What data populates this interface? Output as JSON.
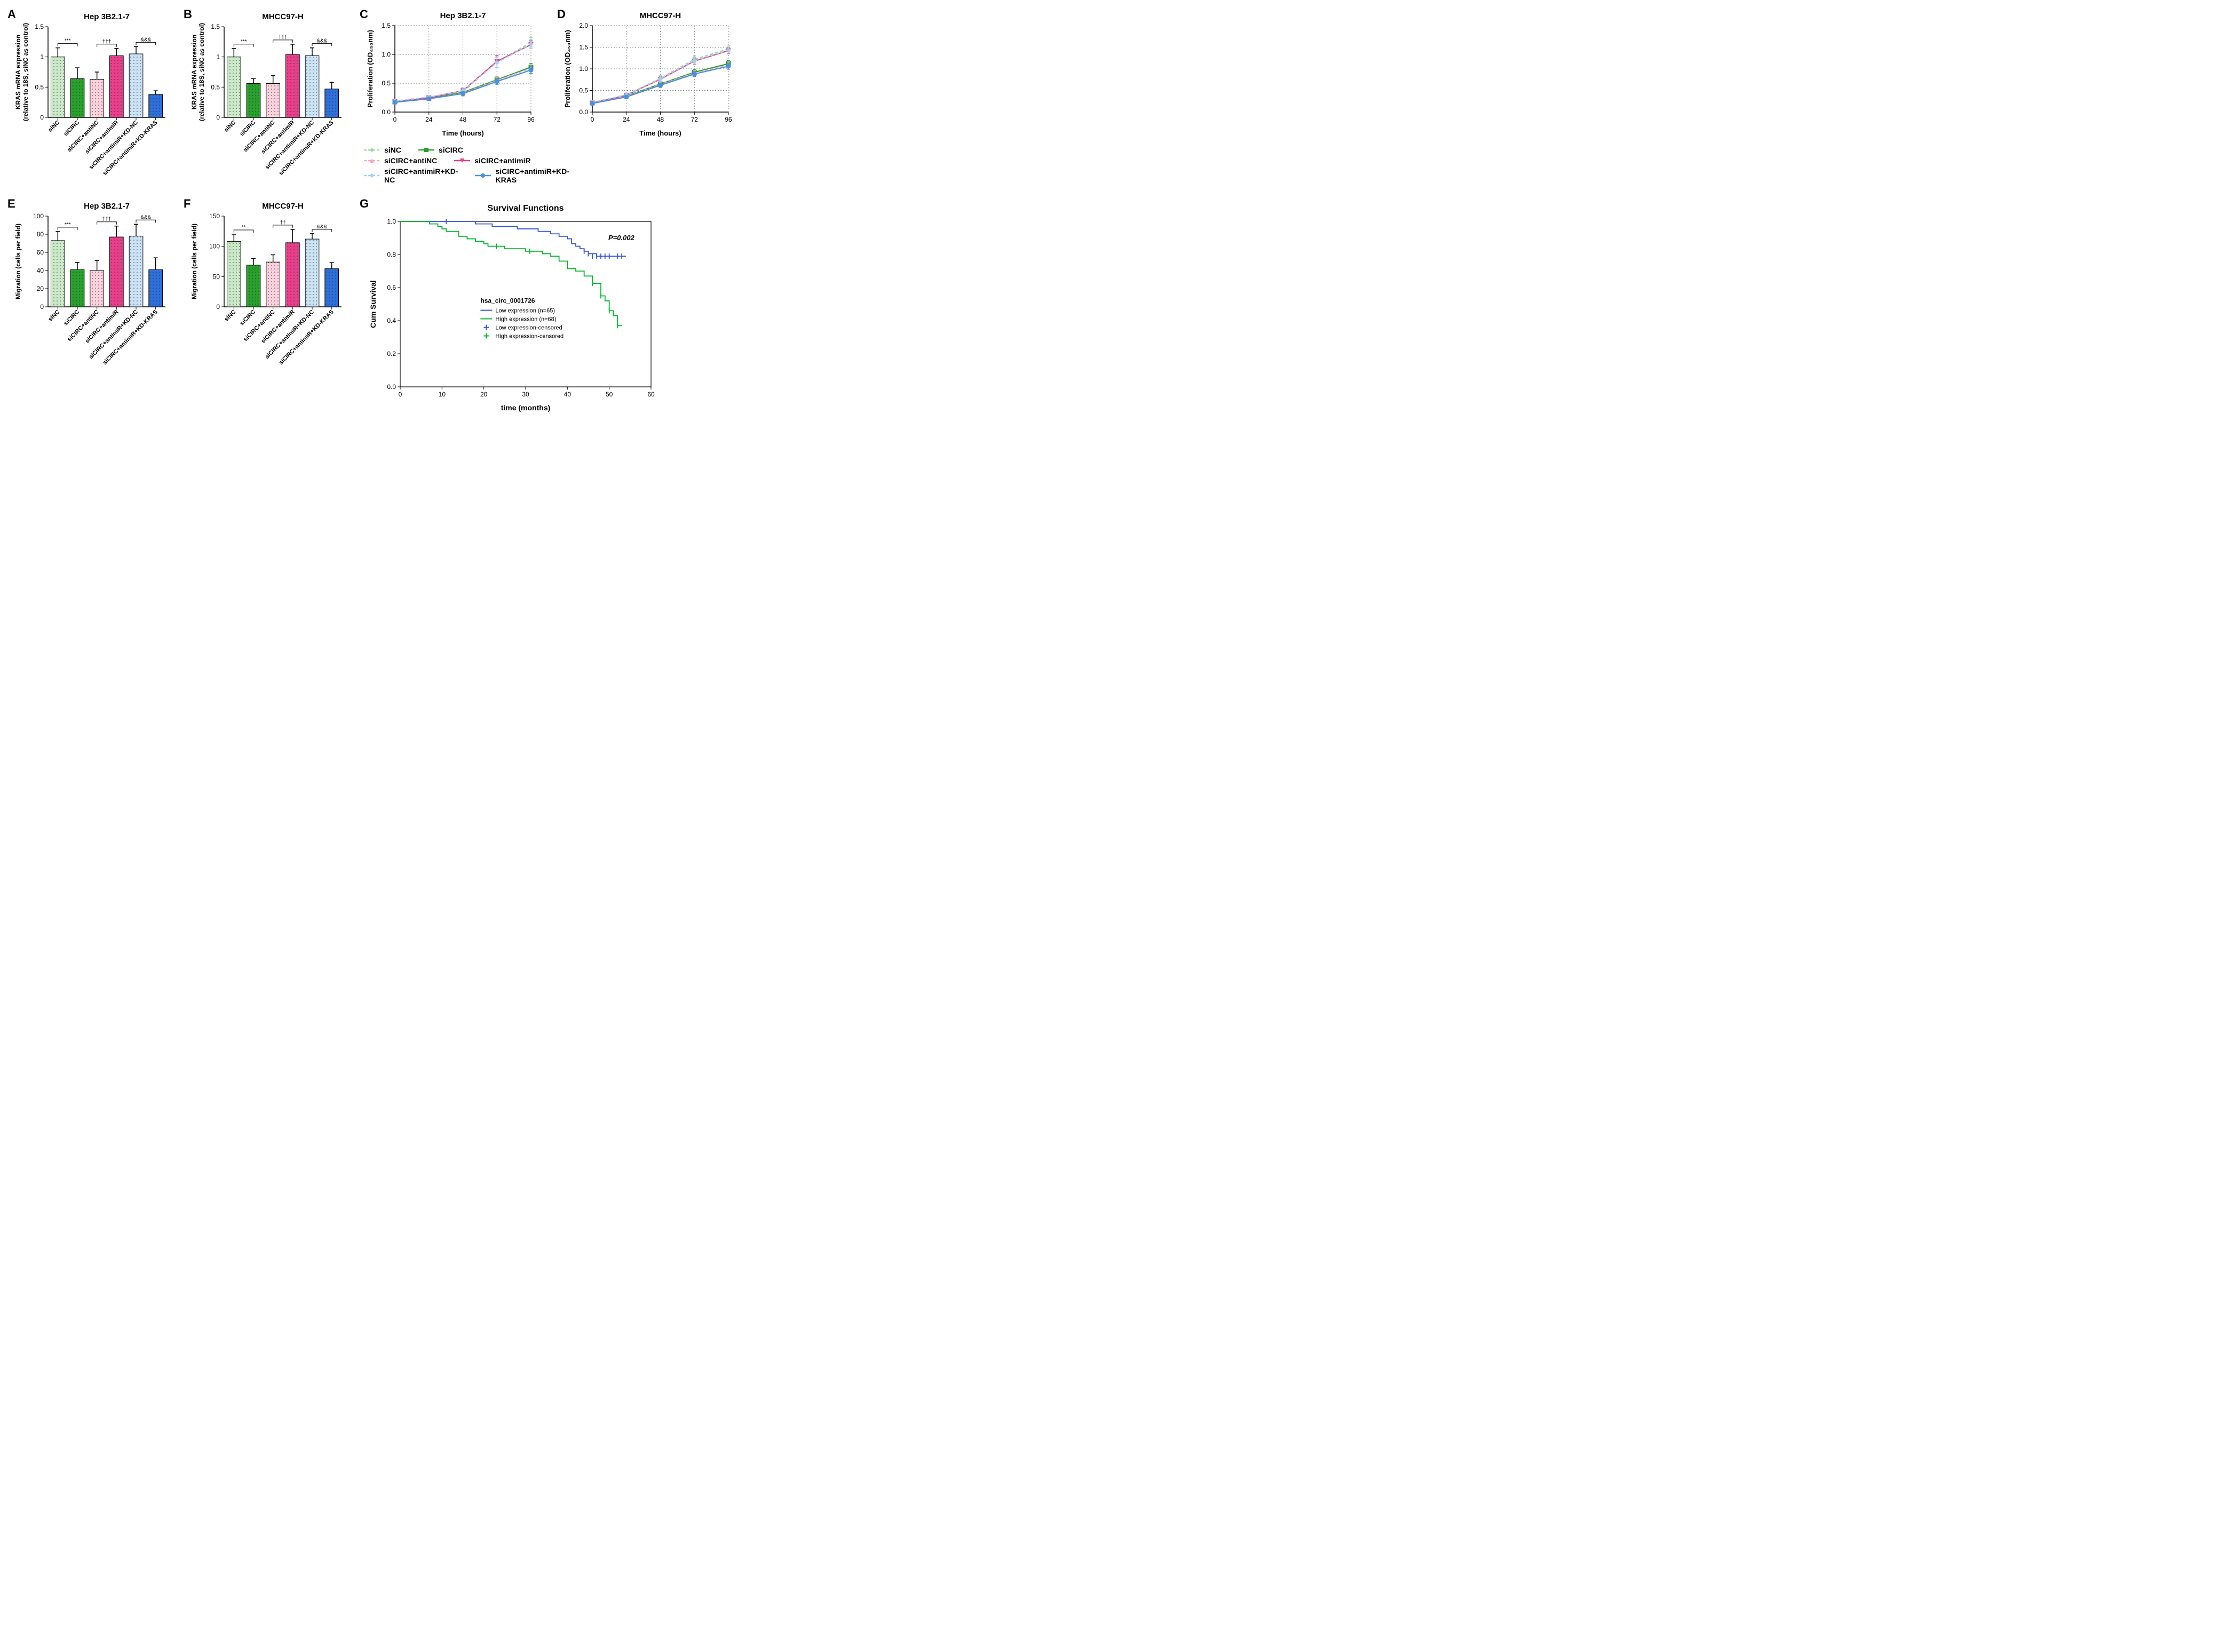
{
  "panels": {
    "A": {
      "label": "A",
      "title": "Hep 3B2.1-7",
      "ylabel": "KRAS mRNA expression\n(relative to 18S, siNC as control)",
      "ylim": [
        0,
        1.5
      ],
      "ystep": 0.5,
      "categories": [
        "siNC",
        "siCIRC",
        "siCIRC+antiNC",
        "siCIRC+antimiR",
        "siCIRC+antimiR+KD-NC",
        "siCIRC+antimiR+KD-KRAS"
      ],
      "values": [
        1.0,
        0.64,
        0.63,
        1.02,
        1.05,
        0.38
      ],
      "errors": [
        0.15,
        0.18,
        0.12,
        0.12,
        0.12,
        0.06
      ],
      "colors": [
        "#c9e9c7",
        "#28a02c",
        "#fbd1dd",
        "#e83e8c",
        "#cbe3f7",
        "#2d6fdb"
      ],
      "sig": [
        [
          "***",
          0,
          1
        ],
        [
          "†††",
          2,
          3
        ],
        [
          "&&&",
          4,
          5
        ]
      ]
    },
    "B": {
      "label": "B",
      "title": "MHCC97-H",
      "ylabel": "KRAS mRNA expression\n(relative to 18S, siNC as control)",
      "ylim": [
        0,
        1.5
      ],
      "ystep": 0.5,
      "categories": [
        "siNC",
        "siCIRC",
        "siCIRC+antiNC",
        "siCIRC+antimiR",
        "siCIRC+antimiR+KD-NC",
        "siCIRC+antimiR+KD-KRAS"
      ],
      "values": [
        1.0,
        0.56,
        0.56,
        1.04,
        1.02,
        0.47
      ],
      "errors": [
        0.14,
        0.08,
        0.13,
        0.17,
        0.13,
        0.11
      ],
      "colors": [
        "#c9e9c7",
        "#28a02c",
        "#fbd1dd",
        "#e83e8c",
        "#cbe3f7",
        "#2d6fdb"
      ],
      "sig": [
        [
          "***",
          0,
          1
        ],
        [
          "†††",
          2,
          3
        ],
        [
          "&&&",
          4,
          5
        ]
      ]
    },
    "C": {
      "label": "C",
      "title": "Hep 3B2.1-7",
      "ylabel": "Proliferation (OD₄₅₀nm)",
      "ylim": [
        0,
        1.5
      ],
      "ystep": 0.5,
      "xpoints": [
        0,
        24,
        48,
        72,
        96
      ],
      "xlabel": "Time (hours)",
      "series": [
        {
          "name": "siNC",
          "values": [
            0.19,
            0.26,
            0.35,
            0.87,
            1.21
          ],
          "err": [
            0.02,
            0.03,
            0.04,
            0.09,
            0.08
          ],
          "color": "#9ed89b",
          "dash": true,
          "marker": "diamond"
        },
        {
          "name": "siCIRC",
          "values": [
            0.18,
            0.24,
            0.34,
            0.56,
            0.78
          ],
          "err": [
            0.02,
            0.03,
            0.04,
            0.05,
            0.06
          ],
          "color": "#28a02c",
          "dash": false,
          "marker": "square"
        },
        {
          "name": "siCIRC+antiNC",
          "values": [
            0.17,
            0.23,
            0.33,
            0.55,
            0.76
          ],
          "err": [
            0.02,
            0.03,
            0.04,
            0.05,
            0.06
          ],
          "color": "#f5a7c0",
          "dash": true,
          "marker": "triangle"
        },
        {
          "name": "siCIRC+antimiR",
          "values": [
            0.18,
            0.25,
            0.37,
            0.88,
            1.17
          ],
          "err": [
            0.02,
            0.03,
            0.05,
            0.1,
            0.07
          ],
          "color": "#e83e8c",
          "dash": false,
          "marker": "invtriangle"
        },
        {
          "name": "siCIRC+antimiR+KD-NC",
          "values": [
            0.19,
            0.26,
            0.37,
            0.86,
            1.18
          ],
          "err": [
            0.02,
            0.03,
            0.05,
            0.09,
            0.08
          ],
          "color": "#a6cdf2",
          "dash": true,
          "marker": "diamond"
        },
        {
          "name": "siCIRC+antimiR+KD-KRAS",
          "values": [
            0.17,
            0.23,
            0.32,
            0.53,
            0.73
          ],
          "err": [
            0.02,
            0.03,
            0.04,
            0.05,
            0.06
          ],
          "color": "#4a90e2",
          "dash": false,
          "marker": "circle"
        }
      ]
    },
    "D": {
      "label": "D",
      "title": "MHCC97-H",
      "ylabel": "Proliferation (OD₄₅₀nm)",
      "ylim": [
        0,
        2.0
      ],
      "ystep": 0.5,
      "xpoints": [
        0,
        24,
        48,
        72,
        96
      ],
      "xlabel": "Time (hours)",
      "series": [
        {
          "name": "siNC",
          "values": [
            0.22,
            0.4,
            0.78,
            1.22,
            1.46
          ],
          "err": [
            0.02,
            0.04,
            0.06,
            0.08,
            0.07
          ],
          "color": "#9ed89b",
          "dash": true,
          "marker": "diamond"
        },
        {
          "name": "siCIRC",
          "values": [
            0.21,
            0.37,
            0.65,
            0.92,
            1.12
          ],
          "err": [
            0.02,
            0.04,
            0.05,
            0.06,
            0.07
          ],
          "color": "#28a02c",
          "dash": false,
          "marker": "square"
        },
        {
          "name": "siCIRC+antiNC",
          "values": [
            0.2,
            0.36,
            0.64,
            0.9,
            1.09
          ],
          "err": [
            0.02,
            0.04,
            0.05,
            0.06,
            0.07
          ],
          "color": "#f5a7c0",
          "dash": true,
          "marker": "triangle"
        },
        {
          "name": "siCIRC+antimiR",
          "values": [
            0.21,
            0.39,
            0.76,
            1.18,
            1.42
          ],
          "err": [
            0.02,
            0.04,
            0.06,
            0.08,
            0.07
          ],
          "color": "#e83e8c",
          "dash": false,
          "marker": "invtriangle"
        },
        {
          "name": "siCIRC+antimiR+KD-NC",
          "values": [
            0.22,
            0.39,
            0.77,
            1.19,
            1.43
          ],
          "err": [
            0.02,
            0.04,
            0.06,
            0.08,
            0.07
          ],
          "color": "#a6cdf2",
          "dash": true,
          "marker": "diamond"
        },
        {
          "name": "siCIRC+antimiR+KD-KRAS",
          "values": [
            0.2,
            0.35,
            0.62,
            0.88,
            1.06
          ],
          "err": [
            0.02,
            0.04,
            0.05,
            0.06,
            0.07
          ],
          "color": "#4a90e2",
          "dash": false,
          "marker": "circle"
        }
      ]
    },
    "E": {
      "label": "E",
      "title": "Hep 3B2.1-7",
      "ylabel": "Migration (cells per field)",
      "ylim": [
        0,
        100
      ],
      "ystep": 20,
      "categories": [
        "siNC",
        "siCIRC",
        "siCIRC+antiNC",
        "siCIRC+antimiR",
        "siCIRC+antimiR+KD-NC",
        "siCIRC+antimiR+KD-KRAS"
      ],
      "values": [
        73,
        41,
        40,
        77,
        78,
        41
      ],
      "errors": [
        10,
        8,
        11,
        12,
        13,
        13
      ],
      "colors": [
        "#c9e9c7",
        "#28a02c",
        "#fbd1dd",
        "#e83e8c",
        "#cbe3f7",
        "#2d6fdb"
      ],
      "sig": [
        [
          "***",
          0,
          1
        ],
        [
          "†††",
          2,
          3
        ],
        [
          "&&&",
          4,
          5
        ]
      ]
    },
    "F": {
      "label": "F",
      "title": "MHCC97-H",
      "ylabel": "Migration (cells per field)",
      "ylim": [
        0,
        150
      ],
      "ystep": 50,
      "categories": [
        "siNC",
        "siCIRC",
        "siCIRC+antiNC",
        "siCIRC+antimiR",
        "siCIRC+antimiR+KD-NC",
        "siCIRC+antimiR+KD-KRAS"
      ],
      "values": [
        108,
        69,
        74,
        106,
        112,
        63
      ],
      "errors": [
        12,
        11,
        12,
        22,
        9,
        10
      ],
      "colors": [
        "#c9e9c7",
        "#28a02c",
        "#fbd1dd",
        "#e83e8c",
        "#cbe3f7",
        "#2d6fdb"
      ],
      "sig": [
        [
          "**",
          0,
          1
        ],
        [
          "††",
          2,
          3
        ],
        [
          "&&&",
          4,
          5
        ]
      ]
    },
    "G": {
      "label": "G",
      "title": "Survival Functions",
      "ylabel": "Cum Survival",
      "xlabel": "time (months)",
      "ylim": [
        0,
        1.0
      ],
      "ystep": 0.2,
      "xlim": [
        0,
        60
      ],
      "xstep": 10,
      "pvalue": "P=0.002",
      "circ_name": "hsa_circ_0001726",
      "legend": [
        {
          "name": "Low expression (n=65)",
          "color": "#3455db",
          "type": "line"
        },
        {
          "name": "High expression (n=68)",
          "color": "#00b529",
          "type": "line"
        },
        {
          "name": "Low expression-censored",
          "color": "#3455db",
          "type": "tick"
        },
        {
          "name": "High expression-censored",
          "color": "#00b529",
          "type": "tick"
        }
      ],
      "curves": [
        {
          "color": "#3455db",
          "points": [
            [
              0,
              1.0
            ],
            [
              10,
              1.0
            ],
            [
              12,
              1.0
            ],
            [
              18,
              0.985
            ],
            [
              22,
              0.97
            ],
            [
              28,
              0.955
            ],
            [
              33,
              0.94
            ],
            [
              36,
              0.925
            ],
            [
              38,
              0.91
            ],
            [
              40,
              0.895
            ],
            [
              41,
              0.865
            ],
            [
              42,
              0.85
            ],
            [
              43,
              0.835
            ],
            [
              44,
              0.82
            ],
            [
              45,
              0.805
            ],
            [
              47,
              0.79
            ],
            [
              54,
              0.79
            ]
          ],
          "censored": [
            [
              11,
              1.0
            ],
            [
              44,
              0.82
            ],
            [
              45,
              0.805
            ],
            [
              46,
              0.79
            ],
            [
              47,
              0.79
            ],
            [
              48,
              0.79
            ],
            [
              49,
              0.79
            ],
            [
              50,
              0.79
            ],
            [
              52,
              0.79
            ],
            [
              53,
              0.79
            ]
          ]
        },
        {
          "color": "#00b529",
          "points": [
            [
              0,
              1.0
            ],
            [
              5,
              1.0
            ],
            [
              7,
              0.985
            ],
            [
              9,
              0.97
            ],
            [
              10,
              0.955
            ],
            [
              11,
              0.94
            ],
            [
              14,
              0.91
            ],
            [
              16,
              0.895
            ],
            [
              18,
              0.88
            ],
            [
              20,
              0.865
            ],
            [
              21,
              0.85
            ],
            [
              25,
              0.835
            ],
            [
              30,
              0.82
            ],
            [
              34,
              0.805
            ],
            [
              36,
              0.79
            ],
            [
              38,
              0.76
            ],
            [
              40,
              0.715
            ],
            [
              42,
              0.7
            ],
            [
              44,
              0.67
            ],
            [
              46,
              0.625
            ],
            [
              48,
              0.55
            ],
            [
              49,
              0.52
            ],
            [
              50,
              0.46
            ],
            [
              51,
              0.43
            ],
            [
              52,
              0.37
            ],
            [
              53,
              0.37
            ]
          ],
          "censored": [
            [
              23,
              0.85
            ],
            [
              31,
              0.82
            ],
            [
              46,
              0.625
            ],
            [
              48,
              0.55
            ],
            [
              50,
              0.46
            ],
            [
              52,
              0.37
            ]
          ]
        }
      ]
    }
  },
  "legend_lines": {
    "row1": [
      {
        "name": "siNC",
        "color": "#9ed89b",
        "dash": true,
        "marker": "diamond"
      },
      {
        "name": "siCIRC",
        "color": "#28a02c",
        "dash": false,
        "marker": "square"
      }
    ],
    "row2": [
      {
        "name": "siCIRC+antiNC",
        "color": "#f5a7c0",
        "dash": true,
        "marker": "triangle"
      },
      {
        "name": "siCIRC+antimiR",
        "color": "#e83e8c",
        "dash": false,
        "marker": "invtriangle"
      }
    ],
    "row3": [
      {
        "name": "siCIRC+antimiR+KD-NC",
        "color": "#a6cdf2",
        "dash": true,
        "marker": "diamond"
      },
      {
        "name": "siCIRC+antimiR+KD-KRAS",
        "color": "#4a90e2",
        "dash": false,
        "marker": "circle"
      }
    ]
  }
}
